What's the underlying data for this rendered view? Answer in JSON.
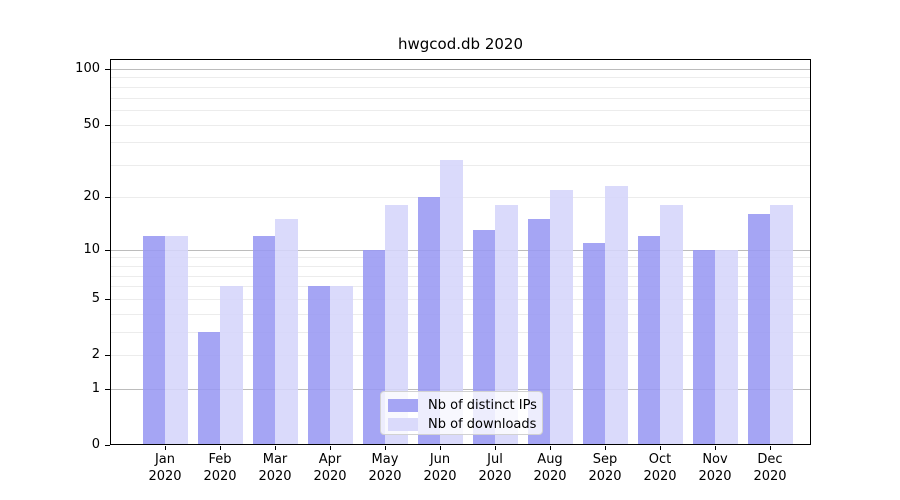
{
  "chart_data": {
    "type": "bar",
    "title": "hwgcod.db 2020",
    "categories": [
      "Jan 2020",
      "Feb 2020",
      "Mar 2020",
      "Apr 2020",
      "May 2020",
      "Jun 2020",
      "Jul 2020",
      "Aug 2020",
      "Sep 2020",
      "Oct 2020",
      "Nov 2020",
      "Dec 2020"
    ],
    "series": [
      {
        "name": "Nb of distinct IPs",
        "color": "#a8a8f2",
        "fill": "rgba(152,152,242,0.88)",
        "values": [
          12,
          3,
          12,
          6,
          10,
          20,
          13,
          15,
          11,
          12,
          10,
          16
        ]
      },
      {
        "name": "Nb of downloads",
        "color": "#d9d9fa",
        "fill": "rgba(213,213,250,0.88)",
        "values": [
          12,
          6,
          15,
          6,
          18,
          32,
          18,
          22,
          23,
          18,
          10,
          18
        ]
      }
    ],
    "xlabel": "",
    "ylabel": "",
    "y_scale": "log(1+x)",
    "ylim": [
      0,
      113
    ],
    "y_tick_values": [
      0,
      1,
      2,
      5,
      10,
      20,
      50,
      100
    ],
    "y_tick_labels": [
      "0",
      "1",
      "2",
      "5",
      "10",
      "20",
      "50",
      "100"
    ],
    "y_major_gridlines": [
      1,
      10,
      100
    ],
    "y_minor_gridlines": [
      2,
      3,
      4,
      5,
      6,
      7,
      8,
      9,
      20,
      30,
      40,
      50,
      60,
      70,
      80,
      90
    ],
    "grid": true,
    "legend_position": "lower center"
  },
  "x_axis": {
    "months": [
      "Jan",
      "Feb",
      "Mar",
      "Apr",
      "May",
      "Jun",
      "Jul",
      "Aug",
      "Sep",
      "Oct",
      "Nov",
      "Dec"
    ],
    "year": "2020"
  }
}
